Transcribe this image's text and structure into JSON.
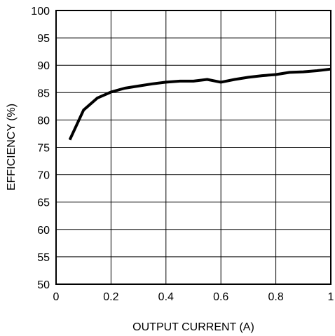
{
  "chart_data": {
    "type": "line",
    "xlabel": "OUTPUT CURRENT (A)",
    "ylabel": "EFFICIENCY (%)",
    "xlim": [
      0,
      1
    ],
    "ylim": [
      50,
      100
    ],
    "x_ticks": [
      0,
      0.2,
      0.4,
      0.6,
      0.8,
      1
    ],
    "x_tick_labels": [
      "0",
      "0.2",
      "0.4",
      "0.6",
      "0.8",
      "1"
    ],
    "y_ticks": [
      50,
      55,
      60,
      65,
      70,
      75,
      80,
      85,
      90,
      95,
      100
    ],
    "y_tick_labels": [
      "50",
      "55",
      "60",
      "65",
      "70",
      "75",
      "80",
      "85",
      "90",
      "95",
      "100"
    ],
    "grid": true,
    "series": [
      {
        "x": [
          0.05,
          0.1,
          0.15,
          0.2,
          0.25,
          0.3,
          0.35,
          0.4,
          0.45,
          0.5,
          0.55,
          0.6,
          0.65,
          0.7,
          0.75,
          0.8,
          0.85,
          0.9,
          0.95,
          1.0
        ],
        "y": [
          76.4,
          81.8,
          84.0,
          85.1,
          85.8,
          86.2,
          86.6,
          86.9,
          87.1,
          87.1,
          87.4,
          86.9,
          87.4,
          87.8,
          88.1,
          88.3,
          88.7,
          88.8,
          89.0,
          89.3
        ]
      }
    ]
  },
  "style": {
    "line_color": "#000000",
    "grid_color": "#000000",
    "background": "#ffffff"
  }
}
